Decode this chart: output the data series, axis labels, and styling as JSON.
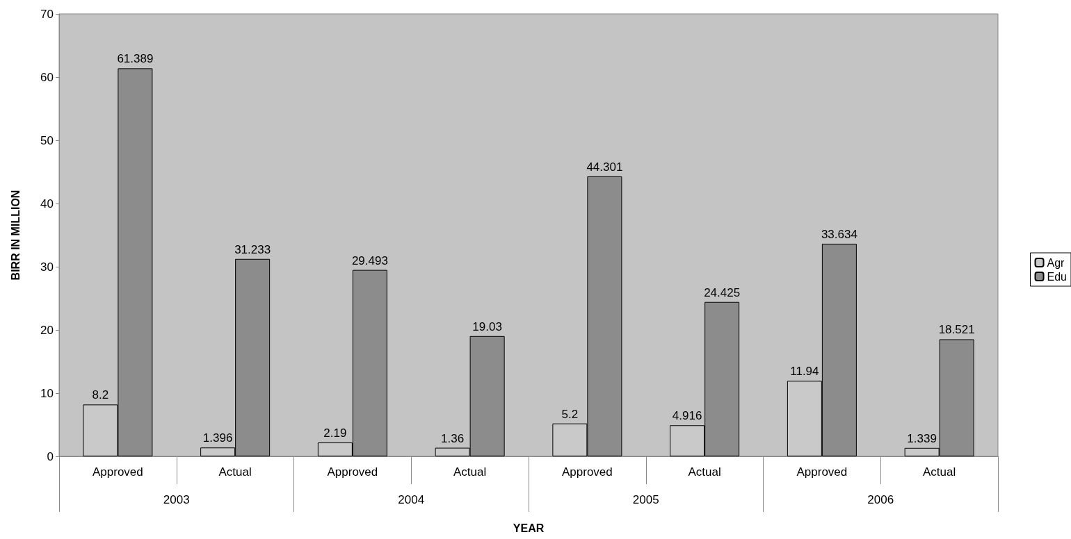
{
  "chart_data": {
    "type": "bar",
    "xlabel": "YEAR",
    "ylabel": "BIRR IN MILLION",
    "categories": [
      "Approved",
      "Actual",
      "Approved",
      "Actual",
      "Approved",
      "Actual",
      "Approved",
      "Actual"
    ],
    "annotations": [
      "2003",
      "2004",
      "2005",
      "2006"
    ],
    "series": [
      {
        "name": "Agr",
        "color": "#c9c9c9",
        "values": [
          8.2,
          1.396,
          2.19,
          1.36,
          5.2,
          4.916,
          11.94,
          1.339
        ]
      },
      {
        "name": "Edu",
        "color": "#8c8c8c",
        "values": [
          61.389,
          31.233,
          29.493,
          19.03,
          44.301,
          24.425,
          33.634,
          18.521
        ]
      }
    ],
    "ylim": [
      0,
      70
    ],
    "yticks": [
      0,
      10,
      20,
      30,
      40,
      50,
      60,
      70
    ],
    "data_labels": true,
    "legend": "right",
    "grid": false
  }
}
